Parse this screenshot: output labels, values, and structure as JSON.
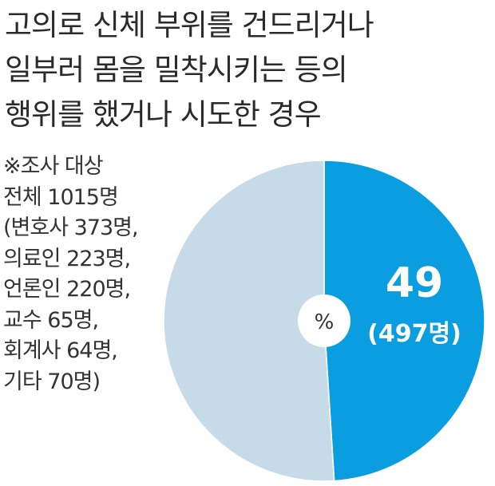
{
  "title_lines": [
    "고의로 신체 부위를 건드리거나",
    "일부러 몸을 밀착시키는 등의",
    "행위를 했거나 시도한 경우"
  ],
  "note_lines": [
    "※조사 대상",
    "전체 1015명",
    "(변호사 373명,",
    "의료인 223명,",
    "언론인 220명,",
    "교수 65명,",
    "회계사 64명,",
    "기타 70명)"
  ],
  "chart_data": {
    "type": "pie",
    "unit": "%",
    "slices": [
      {
        "value": 49,
        "label": "49",
        "sublabel": "(497명)",
        "color": "#0a9de0"
      },
      {
        "value": 51,
        "label": "",
        "sublabel": "",
        "color": "#c6dbe7"
      }
    ]
  }
}
